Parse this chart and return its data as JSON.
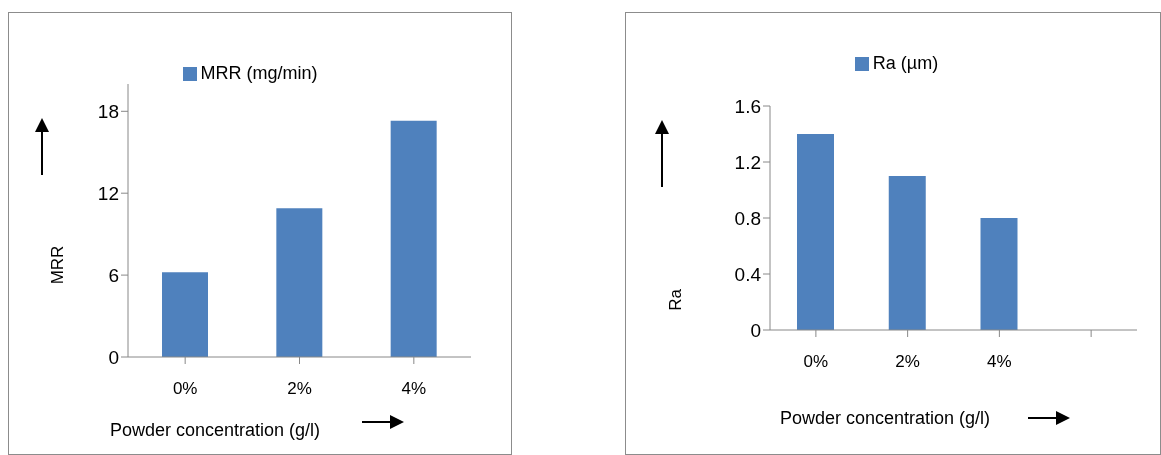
{
  "chart_data": [
    {
      "type": "bar",
      "categories": [
        "0%",
        "2%",
        "4%"
      ],
      "series": [
        {
          "name": "MRR (mg/min)",
          "color": "#4f81bd",
          "values": [
            6.2,
            10.9,
            17.3
          ]
        }
      ],
      "ylim": [
        0,
        20
      ],
      "yticks": [
        0,
        6,
        12,
        18
      ],
      "xlabel": "Powder concentration (g/l)",
      "ylabel": "MRR",
      "legend": "top",
      "grid": false
    },
    {
      "type": "bar",
      "categories": [
        "0%",
        "2%",
        "4%",
        null
      ],
      "series": [
        {
          "name": "Ra (µm)",
          "color": "#4f81bd",
          "values": [
            1.4,
            1.1,
            0.8,
            null
          ]
        }
      ],
      "ylim": [
        0,
        1.6
      ],
      "yticks": [
        0,
        0.4,
        0.8,
        1.2,
        1.6
      ],
      "xlabel": "Powder concentration (g/l)",
      "ylabel": "Ra",
      "legend": "top",
      "grid": false
    }
  ]
}
